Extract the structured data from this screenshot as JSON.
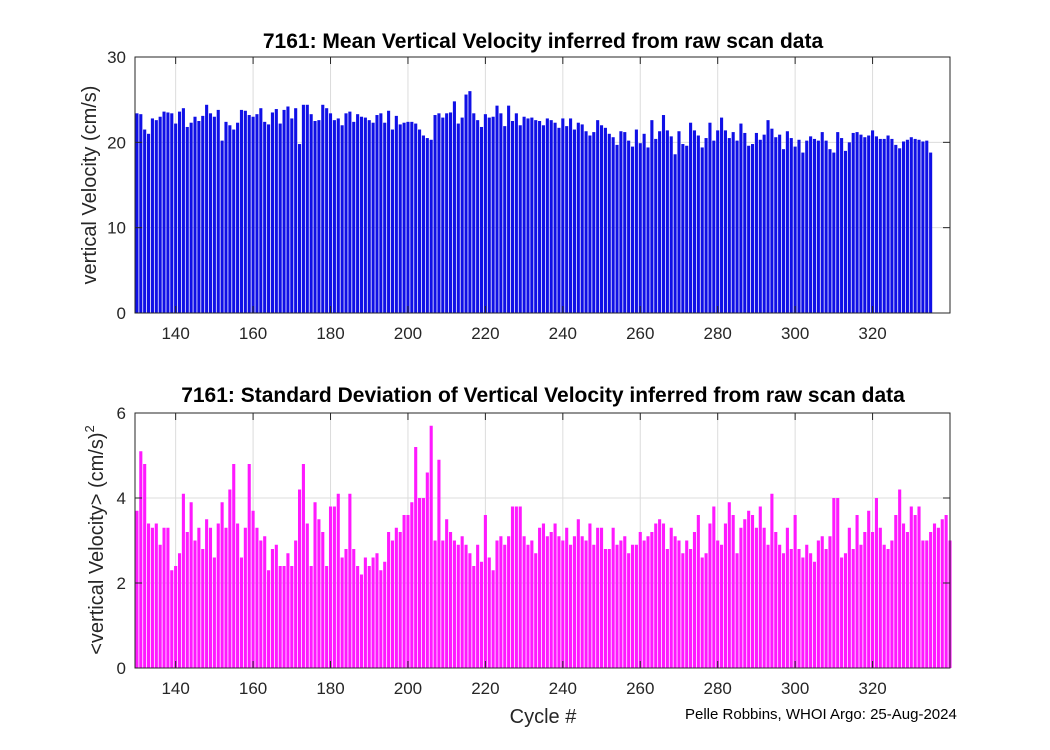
{
  "chart_data": [
    {
      "type": "bar",
      "title": "7161: Mean Vertical Velocity inferred from raw scan data",
      "xlabel": "",
      "ylabel": "vertical Velocity (cm/s)",
      "xlim": [
        129.5,
        340
      ],
      "ylim": [
        0,
        30
      ],
      "xticks": [
        140,
        160,
        180,
        200,
        220,
        240,
        260,
        280,
        300,
        320
      ],
      "yticks": [
        0,
        10,
        20,
        30
      ],
      "grid": true,
      "color": "#1010e6",
      "x_start": 130,
      "values": [
        23.4,
        23.3,
        21.5,
        21.0,
        22.8,
        22.6,
        23.0,
        23.6,
        23.5,
        23.4,
        22.2,
        23.6,
        24.0,
        21.8,
        22.3,
        23.0,
        22.5,
        23.1,
        24.4,
        23.4,
        23.0,
        23.8,
        20.2,
        22.4,
        22.0,
        21.5,
        22.3,
        23.8,
        23.7,
        23.2,
        23.0,
        23.3,
        24.0,
        22.4,
        22.1,
        23.5,
        23.9,
        22.2,
        23.8,
        24.2,
        22.8,
        24.0,
        19.8,
        24.4,
        24.4,
        23.3,
        22.5,
        22.6,
        24.4,
        24.0,
        23.4,
        22.6,
        22.8,
        22.0,
        23.4,
        23.6,
        22.4,
        23.3,
        23.0,
        22.9,
        22.6,
        22.3,
        23.2,
        23.4,
        22.3,
        23.7,
        21.5,
        23.1,
        22.1,
        22.3,
        22.4,
        22.4,
        22.2,
        21.5,
        20.8,
        20.5,
        20.3,
        23.2,
        23.4,
        22.9,
        23.4,
        23.5,
        24.8,
        22.2,
        22.9,
        25.6,
        26.0,
        23.4,
        22.6,
        21.8,
        23.3,
        22.9,
        23.0,
        24.3,
        23.4,
        21.9,
        24.3,
        22.5,
        23.4,
        22.0,
        23.0,
        22.8,
        22.9,
        22.6,
        22.5,
        22.0,
        22.8,
        22.6,
        22.3,
        21.7,
        22.8,
        21.9,
        22.8,
        21.5,
        22.3,
        22.1,
        21.3,
        20.8,
        21.2,
        22.6,
        22.0,
        21.7,
        21.0,
        20.6,
        19.7,
        21.3,
        21.2,
        20.2,
        19.5,
        21.5,
        19.9,
        21.0,
        19.4,
        22.6,
        20.4,
        21.3,
        23.2,
        21.4,
        20.7,
        18.6,
        21.3,
        19.8,
        19.6,
        22.3,
        21.4,
        20.8,
        19.4,
        20.5,
        22.3,
        20.2,
        21.4,
        22.9,
        21.4,
        20.5,
        21.2,
        20.2,
        22.2,
        21.1,
        19.6,
        19.8,
        21.1,
        20.3,
        20.9,
        22.6,
        21.6,
        20.6,
        20.9,
        19.2,
        21.3,
        20.5,
        19.5,
        20.3,
        18.8,
        20.2,
        20.7,
        20.4,
        20.2,
        21.2,
        20.2,
        19.2,
        18.8,
        21.2,
        20.5,
        19.0,
        20.0,
        21.1,
        21.2,
        20.9,
        20.6,
        20.8,
        21.4,
        20.7,
        20.4,
        20.4,
        20.8,
        20.4,
        19.7,
        19.3,
        20.1,
        20.3,
        20.6,
        20.4,
        20.3,
        20.1,
        20.2,
        18.8
      ]
    },
    {
      "type": "bar",
      "title": "7161: Standard Deviation of Vertical Velocity inferred from raw scan data",
      "xlabel": "Cycle #",
      "ylabel": "<vertical Velocity> (cm/s)",
      "ylabel_sup": "2",
      "xlim": [
        129.5,
        340
      ],
      "ylim": [
        0,
        6
      ],
      "xticks": [
        140,
        160,
        180,
        200,
        220,
        240,
        260,
        280,
        300,
        320
      ],
      "yticks": [
        0,
        2,
        4,
        6
      ],
      "grid": true,
      "color": "#ff19ff",
      "x_start": 130,
      "values": [
        3.7,
        5.1,
        4.8,
        3.4,
        3.3,
        3.4,
        2.9,
        3.3,
        3.3,
        2.3,
        2.4,
        2.7,
        4.1,
        3.2,
        3.9,
        3.0,
        3.3,
        2.8,
        3.5,
        3.3,
        2.6,
        3.4,
        3.9,
        3.3,
        4.2,
        4.8,
        3.4,
        2.6,
        3.3,
        4.8,
        3.7,
        3.3,
        3.0,
        3.1,
        2.3,
        2.8,
        2.9,
        2.4,
        2.4,
        2.7,
        2.4,
        3.0,
        4.2,
        4.8,
        3.4,
        2.4,
        3.9,
        3.5,
        3.2,
        2.4,
        3.8,
        3.8,
        4.1,
        2.6,
        2.8,
        4.1,
        2.8,
        2.4,
        2.2,
        2.6,
        2.4,
        2.6,
        2.7,
        2.3,
        2.5,
        3.2,
        3.0,
        3.3,
        3.2,
        3.6,
        3.6,
        3.9,
        5.2,
        4.0,
        4.0,
        4.6,
        5.7,
        3.0,
        4.9,
        3.0,
        3.5,
        3.2,
        3.0,
        2.9,
        3.1,
        2.9,
        2.7,
        2.4,
        2.9,
        2.5,
        3.6,
        2.6,
        2.3,
        3.0,
        3.1,
        2.9,
        3.1,
        3.8,
        3.8,
        3.8,
        3.1,
        2.9,
        3.0,
        2.7,
        3.3,
        3.4,
        3.1,
        3.2,
        3.4,
        3.1,
        3.0,
        3.3,
        2.9,
        3.1,
        3.5,
        3.1,
        3.0,
        3.4,
        2.9,
        3.3,
        3.3,
        2.8,
        2.8,
        3.3,
        2.9,
        3.0,
        3.1,
        2.7,
        2.9,
        2.9,
        3.2,
        3.0,
        3.1,
        3.2,
        3.4,
        3.5,
        3.4,
        2.8,
        3.3,
        3.1,
        3.0,
        2.7,
        3.0,
        2.8,
        3.2,
        3.6,
        2.6,
        2.7,
        3.4,
        3.8,
        3.0,
        2.9,
        3.4,
        3.9,
        3.6,
        2.7,
        3.3,
        3.5,
        3.7,
        3.6,
        3.3,
        3.8,
        3.3,
        2.9,
        4.1,
        3.2,
        2.9,
        2.7,
        3.3,
        2.8,
        3.6,
        2.8,
        2.6,
        2.9,
        2.7,
        2.5,
        3.0,
        3.1,
        2.8,
        3.1,
        4.0,
        4.0,
        2.6,
        2.7,
        3.3,
        2.8,
        3.6,
        2.9,
        3.2,
        3.7,
        3.2,
        4.0,
        3.3,
        2.9,
        2.8,
        3.0,
        3.6,
        4.2,
        3.4,
        3.2,
        3.8,
        3.6,
        3.8,
        3.0,
        3.0,
        3.2,
        3.4,
        3.3,
        3.5,
        3.6,
        3.0
      ]
    }
  ],
  "footer": {
    "credit": "Pelle Robbins, WHOI Argo: 25-Aug-2024"
  }
}
